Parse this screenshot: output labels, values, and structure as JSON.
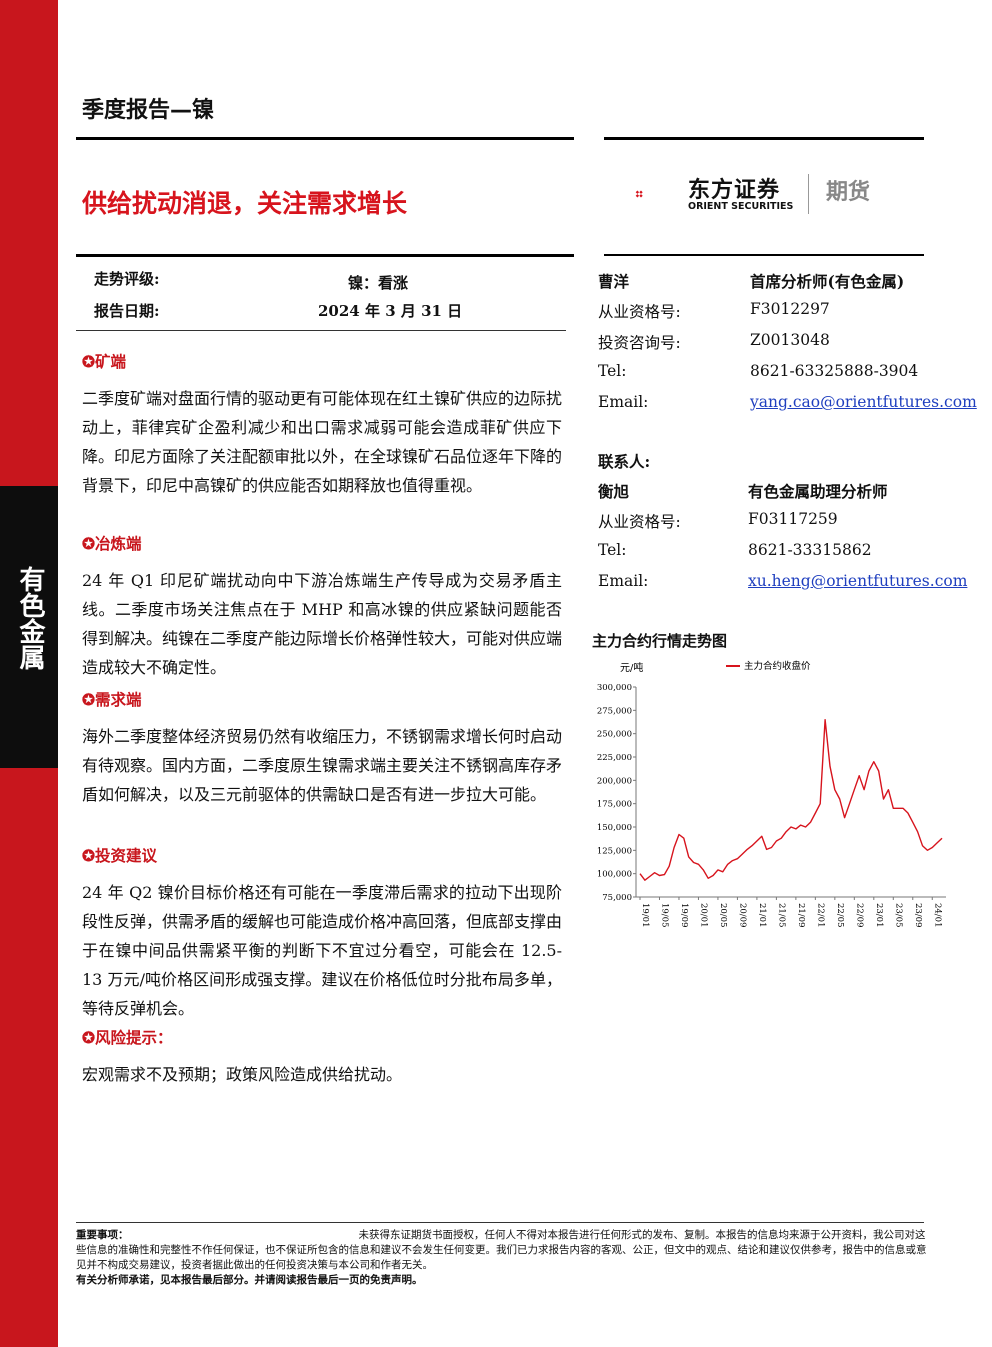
{
  "sidebar": {
    "label": "有色金属"
  },
  "header": {
    "report_type": "季度报告—镍",
    "headline": "供给扰动消退，关注需求增长"
  },
  "logo": {
    "company_cn": "东方证券",
    "company_en": "ORIENT SECURITIES",
    "division": "期货"
  },
  "meta": {
    "rating_label": "走势评级:",
    "rating_value": "镍：看涨",
    "date_label": "报告日期:",
    "date_value": "2024 年 3 月 31 日"
  },
  "sections": [
    {
      "title": "矿端",
      "body": "二季度矿端对盘面行情的驱动更有可能体现在红土镍矿供应的边际扰动上，菲律宾矿企盈利减少和出口需求减弱可能会造成菲矿供应下降。印尼方面除了关注配额审批以外，在全球镍矿石品位逐年下降的背景下，印尼中高镍矿的供应能否如期释放也值得重视。"
    },
    {
      "title": "冶炼端",
      "body": "24 年 Q1 印尼矿端扰动向中下游冶炼端生产传导成为交易矛盾主线。二季度市场关注焦点在于 MHP 和高冰镍的供应紧缺问题能否得到解决。纯镍在二季度产能边际增长价格弹性较大，可能对供应端造成较大不确定性。"
    },
    {
      "title": "需求端",
      "body": "海外二季度整体经济贸易仍然有收缩压力，不锈钢需求增长何时启动有待观察。国内方面，二季度原生镍需求端主要关注不锈钢高库存矛盾如何解决，以及三元前驱体的供需缺口是否有进一步拉大可能。"
    },
    {
      "title": "投资建议",
      "body": "24 年 Q2 镍价目标价格还有可能在一季度滞后需求的拉动下出现阶段性反弹，供需矛盾的缓解也可能造成价格冲高回落，但底部支撑由于在镍中间品供需紧平衡的判断下不宜过分看空，可能会在 12.5-13 万元/吨价格区间形成强支撑。建议在价格低位时分批布局多单，等待反弹机会。"
    },
    {
      "title": "风险提示：",
      "body": "宏观需求不及预期；政策风险造成供给扰动。"
    }
  ],
  "analyst": {
    "name": "曹洋",
    "title": "首席分析师(有色金属)",
    "qual_label": "从业资格号:",
    "qual": "F3012297",
    "consult_label": "投资咨询号:",
    "consult": "Z0013048",
    "tel_label": "Tel:",
    "tel": "8621-63325888-3904",
    "email_label": "Email:",
    "email": "yang.cao@orientfutures.com"
  },
  "contact": {
    "heading": "联系人:",
    "name": "衡旭",
    "title": "有色金属助理分析师",
    "qual_label": "从业资格号:",
    "qual": "F03117259",
    "tel_label": "Tel:",
    "tel": "8621-33315862",
    "email_label": "Email:",
    "email": "xu.heng@orientfutures.com"
  },
  "chart_title": "主力合约行情走势图",
  "chart_data": {
    "type": "line",
    "ylabel": "元/吨",
    "ylim": [
      75000,
      300000
    ],
    "yticks": [
      "300,000",
      "275,000",
      "250,000",
      "225,000",
      "200,000",
      "175,000",
      "150,000",
      "125,000",
      "100,000",
      "75,000"
    ],
    "xticks": [
      "19/01",
      "19/05",
      "19/09",
      "20/01",
      "20/05",
      "20/09",
      "21/01",
      "21/05",
      "21/09",
      "22/01",
      "22/05",
      "22/09",
      "23/01",
      "23/05",
      "23/09",
      "24/01"
    ],
    "series": [
      {
        "name": "主力合约收盘价",
        "color": "#d7141d",
        "x": [
          "19/01",
          "19/02",
          "19/03",
          "19/04",
          "19/05",
          "19/06",
          "19/07",
          "19/08",
          "19/09",
          "19/10",
          "19/11",
          "19/12",
          "20/01",
          "20/02",
          "20/03",
          "20/04",
          "20/05",
          "20/06",
          "20/07",
          "20/08",
          "20/09",
          "20/10",
          "20/11",
          "20/12",
          "21/01",
          "21/02",
          "21/03",
          "21/04",
          "21/05",
          "21/06",
          "21/07",
          "21/08",
          "21/09",
          "21/10",
          "21/11",
          "21/12",
          "22/01",
          "22/02",
          "22/03",
          "22/04",
          "22/05",
          "22/06",
          "22/07",
          "22/08",
          "22/09",
          "22/10",
          "22/11",
          "22/12",
          "23/01",
          "23/02",
          "23/03",
          "23/04",
          "23/05",
          "23/06",
          "23/07",
          "23/08",
          "23/09",
          "23/10",
          "23/11",
          "23/12",
          "24/01",
          "24/02",
          "24/03"
        ],
        "values": [
          100000,
          93000,
          97000,
          101000,
          98000,
          99000,
          108000,
          128000,
          142000,
          138000,
          118000,
          112000,
          110000,
          104000,
          95000,
          98000,
          104000,
          102000,
          110000,
          114000,
          116000,
          121000,
          126000,
          130000,
          135000,
          140000,
          126000,
          128000,
          135000,
          138000,
          145000,
          150000,
          148000,
          152000,
          150000,
          155000,
          165000,
          175000,
          265000,
          215000,
          190000,
          180000,
          160000,
          175000,
          190000,
          205000,
          190000,
          210000,
          220000,
          210000,
          180000,
          190000,
          170000,
          170000,
          170000,
          165000,
          155000,
          145000,
          130000,
          125000,
          128000,
          133000,
          138000
        ]
      }
    ]
  },
  "footer": {
    "heading": "重要事项：",
    "text1": "未获得东证期货书面授权，任何人不得对本报告进行任何形式的发布、复制。本报告的信息均来源于公开资料，我公司对这些信息的准确性和完整性不作任何保证，也不保证所包含的信息和建议不会发生任何变更。我们已力求报告内容的客观、公正，但文中的观点、结论和建议仅供参考，报告中的信息或意见并不构成交易建议，投资者据此做出的任何投资决策与本公司和作者无关。",
    "text2": "有关分析师承诺，见本报告最后部分。并请阅读报告最后一页的免责声明。"
  }
}
